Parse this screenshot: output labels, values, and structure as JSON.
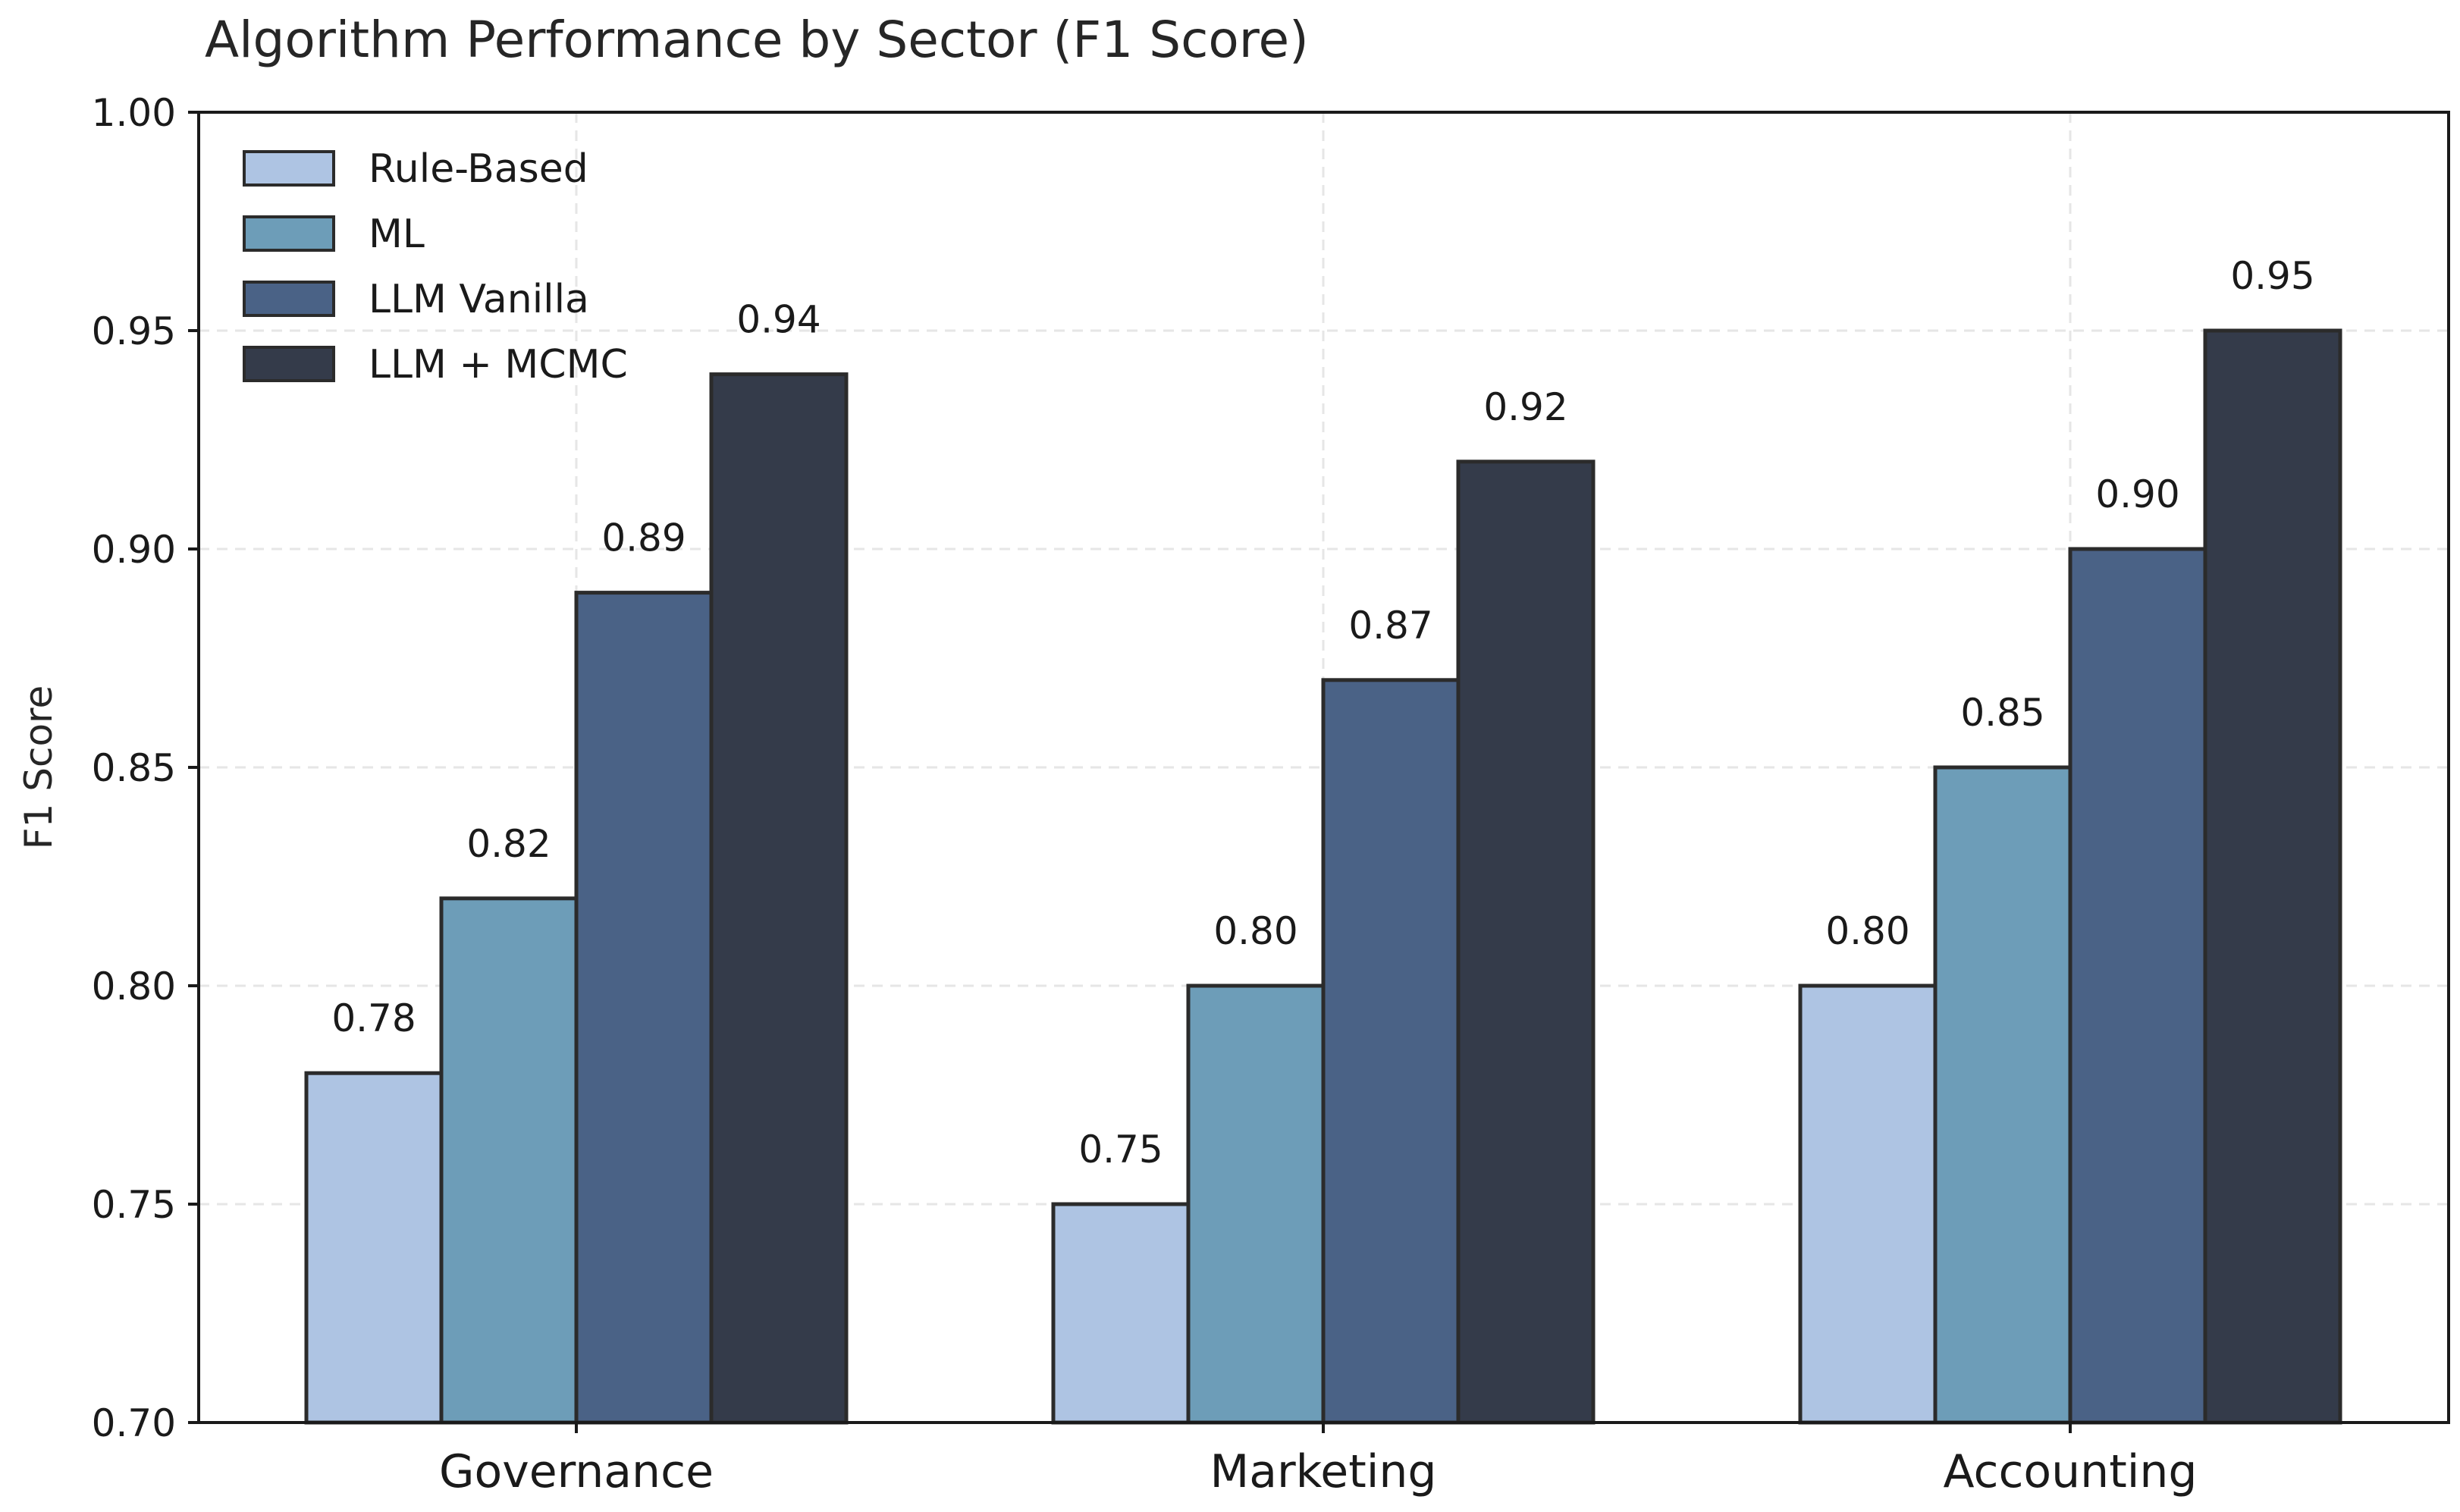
{
  "chart_data": {
    "type": "bar",
    "title": "Algorithm Performance by Sector (F1 Score)",
    "xlabel": "",
    "ylabel": "F1 Score",
    "ylim": [
      0.7,
      1.0
    ],
    "yticks": [
      "0.70",
      "0.75",
      "0.80",
      "0.85",
      "0.90",
      "0.95",
      "1.00"
    ],
    "categories": [
      "Governance",
      "Marketing",
      "Accounting"
    ],
    "series": [
      {
        "name": "Rule-Based",
        "color": "#aec4e3",
        "values": [
          0.78,
          0.75,
          0.8
        ],
        "labels": [
          "0.78",
          "0.75",
          "0.80"
        ]
      },
      {
        "name": "ML",
        "color": "#6d9db8",
        "values": [
          0.82,
          0.8,
          0.85
        ],
        "labels": [
          "0.82",
          "0.80",
          "0.85"
        ]
      },
      {
        "name": "LLM Vanilla",
        "color": "#4a6286",
        "values": [
          0.89,
          0.87,
          0.9
        ],
        "labels": [
          "0.89",
          "0.87",
          "0.90"
        ]
      },
      {
        "name": "LLM + MCMC",
        "color": "#343b4a",
        "values": [
          0.94,
          0.92,
          0.95
        ],
        "labels": [
          "0.94",
          "0.92",
          "0.95"
        ]
      }
    ],
    "grid": true,
    "legend_position": "top-left"
  }
}
